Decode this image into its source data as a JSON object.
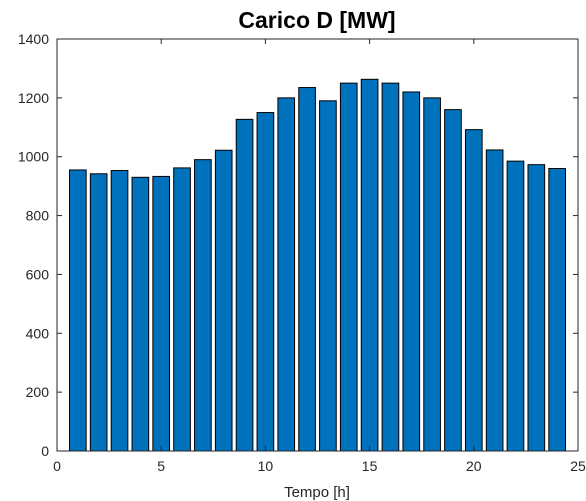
{
  "chart_data": {
    "type": "bar",
    "title": "Carico D [MW]",
    "xlabel": "Tempo [h]",
    "ylabel": "",
    "x": [
      1,
      2,
      3,
      4,
      5,
      6,
      7,
      8,
      9,
      10,
      11,
      12,
      13,
      14,
      15,
      16,
      17,
      18,
      19,
      20,
      21,
      22,
      23,
      24
    ],
    "values": [
      955,
      942,
      953,
      930,
      933,
      962,
      990,
      1022,
      1127,
      1150,
      1200,
      1235,
      1190,
      1250,
      1263,
      1250,
      1220,
      1200,
      1160,
      1092,
      1023,
      985,
      973,
      960
    ],
    "xlim": [
      0,
      25
    ],
    "ylim": [
      0,
      1400
    ],
    "xticks": [
      0,
      5,
      10,
      15,
      20,
      25
    ],
    "yticks": [
      0,
      200,
      400,
      600,
      800,
      1000,
      1200,
      1400
    ],
    "grid": false,
    "bar_color": "#0072BD",
    "edge_color": "#000000"
  }
}
